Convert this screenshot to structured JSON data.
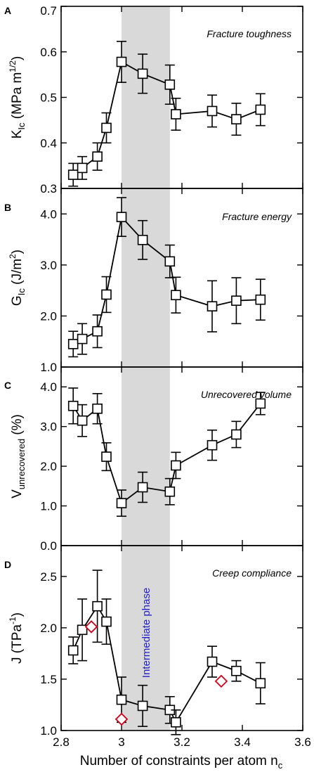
{
  "colors": {
    "band": "#d9d9d9",
    "series": "#000000",
    "marker_fill": "#ffffff",
    "diamond": "#d0021b",
    "phase_label": "#2222cc"
  },
  "phase_label": "Intermediate phase",
  "xlabel": {
    "main": "Number of constraints per atom n",
    "sub": "c"
  },
  "chart_data": [
    {
      "type": "line",
      "letter": "A",
      "annotation": "Fracture toughness",
      "ylabel": {
        "main": "K",
        "sub": "Ic",
        "rest": " (MPa m",
        "sup": "1/2",
        "close": ")"
      },
      "ylim": [
        0.3,
        0.7
      ],
      "yticks": [
        0.3,
        0.4,
        0.5,
        0.6,
        0.7
      ],
      "ytick_labels": [
        "0.3",
        "0.4",
        "0.5",
        "0.6",
        "0.7"
      ],
      "xlim": [
        2.8,
        3.6
      ],
      "shaded_x": [
        3.0,
        3.16
      ],
      "series": [
        {
          "marker": "square",
          "x": [
            2.84,
            2.87,
            2.92,
            2.95,
            3.0,
            3.07,
            3.16,
            3.18,
            3.3,
            3.38,
            3.46
          ],
          "y": [
            0.33,
            0.345,
            0.37,
            0.433,
            0.578,
            0.552,
            0.528,
            0.463,
            0.47,
            0.452,
            0.473
          ],
          "yerr": [
            0.025,
            0.025,
            0.03,
            0.033,
            0.045,
            0.043,
            0.043,
            0.035,
            0.035,
            0.035,
            0.035
          ]
        }
      ]
    },
    {
      "type": "line",
      "letter": "B",
      "annotation": "Fracture energy",
      "ylabel": {
        "main": "G",
        "sub": "Ic",
        "rest": " (J/m",
        "sup": "2",
        "close": ")"
      },
      "ylim": [
        1.0,
        4.5
      ],
      "yticks": [
        1.0,
        2.0,
        3.0,
        4.0
      ],
      "ytick_labels": [
        "1.0",
        "2.0",
        "3.0",
        "4.0"
      ],
      "xlim": [
        2.8,
        3.6
      ],
      "shaded_x": [
        3.0,
        3.16
      ],
      "series": [
        {
          "marker": "square",
          "x": [
            2.84,
            2.87,
            2.92,
            2.95,
            3.0,
            3.07,
            3.16,
            3.18,
            3.3,
            3.38,
            3.46
          ],
          "y": [
            1.45,
            1.55,
            1.7,
            2.42,
            3.94,
            3.49,
            3.07,
            2.41,
            2.19,
            2.3,
            2.32
          ],
          "yerr": [
            0.25,
            0.3,
            0.32,
            0.35,
            0.38,
            0.38,
            0.32,
            0.35,
            0.5,
            0.45,
            0.4
          ]
        }
      ]
    },
    {
      "type": "line",
      "letter": "C",
      "annotation": "Unrecovered volume",
      "ylabel": {
        "main": "V",
        "sub": "unrecovered",
        "rest": " (%)",
        "sup": "",
        "close": ""
      },
      "ylim": [
        0.0,
        4.5
      ],
      "yticks": [
        0.0,
        1.0,
        2.0,
        3.0,
        4.0
      ],
      "ytick_labels": [
        "0.0",
        "1.0",
        "2.0",
        "3.0",
        "4.0"
      ],
      "xlim": [
        2.8,
        3.6
      ],
      "shaded_x": [
        3.0,
        3.16
      ],
      "series": [
        {
          "marker": "square",
          "x": [
            2.84,
            2.87,
            2.92,
            2.95,
            3.0,
            3.07,
            3.16,
            3.18,
            3.3,
            3.38,
            3.46
          ],
          "y": [
            3.52,
            3.15,
            3.45,
            2.24,
            1.07,
            1.47,
            1.36,
            2.02,
            2.53,
            2.8,
            3.58
          ],
          "yerr": [
            0.45,
            0.4,
            0.38,
            0.35,
            0.33,
            0.38,
            0.33,
            0.33,
            0.38,
            0.33,
            0.28
          ]
        }
      ]
    },
    {
      "type": "scatter",
      "letter": "D",
      "annotation": "Creep compliance",
      "ylabel": {
        "main": "J (TPa",
        "sub": "",
        "rest": "",
        "sup": "-1",
        "close": ")"
      },
      "ylim": [
        1.0,
        2.8
      ],
      "yticks": [
        1.0,
        1.5,
        2.0,
        2.5
      ],
      "ytick_labels": [
        "1.0",
        "1.5",
        "2.0",
        "2.5"
      ],
      "xlim": [
        2.8,
        3.6
      ],
      "xticks": [
        2.8,
        3.0,
        3.2,
        3.4,
        3.6
      ],
      "xtick_labels": [
        "2.8",
        "3",
        "3.2",
        "3.4",
        "3.6"
      ],
      "shaded_x": [
        3.0,
        3.16
      ],
      "series": [
        {
          "marker": "square",
          "x": [
            2.84,
            2.87,
            2.92,
            2.95,
            3.0,
            3.07,
            3.16,
            3.18,
            3.3,
            3.38,
            3.46
          ],
          "y": [
            1.78,
            1.98,
            2.21,
            2.06,
            1.3,
            1.24,
            1.2,
            1.08,
            1.67,
            1.58,
            1.46
          ],
          "yerr": [
            0.13,
            0.3,
            0.35,
            0.22,
            0.22,
            0.2,
            0.13,
            0.12,
            0.15,
            0.1,
            0.2
          ]
        },
        {
          "marker": "diamond",
          "x": [
            2.9,
            3.0,
            3.33
          ],
          "y": [
            2.01,
            1.11,
            1.48
          ]
        }
      ]
    }
  ]
}
